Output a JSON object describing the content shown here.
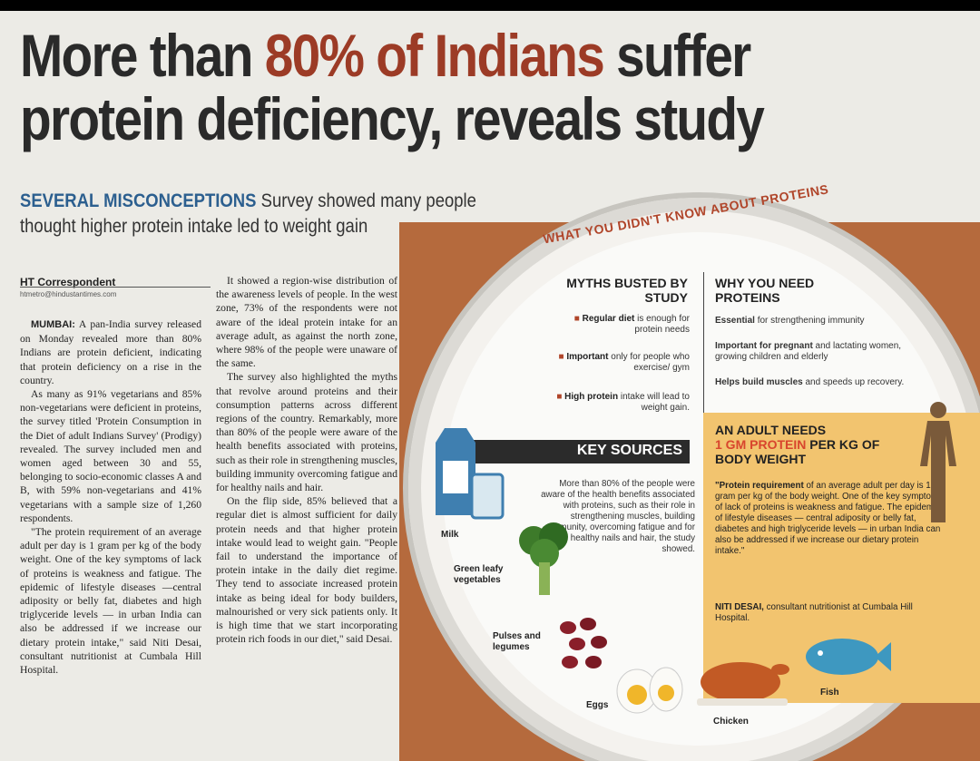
{
  "headline": {
    "line1_pre": "More than ",
    "line1_accent": "80% of Indians",
    "line1_post": " suffer",
    "line2": "protein deficiency, reveals study"
  },
  "subhead": {
    "kicker": "SEVERAL MISCONCEPTIONS",
    "text": " Survey showed many people thought higher protein intake led to weight gain"
  },
  "byline": {
    "author": "HT Correspondent",
    "email": "htmetro@hindustantimes.com"
  },
  "article": {
    "col1": [
      {
        "dateline": "MUMBAI:",
        "text": " A pan-India survey released on Monday revealed more than 80% Indians are protein deficient, indicating that protein deficiency on a rise in the country."
      },
      {
        "text": "As many as 91% vegetarians and 85% non-vegetarians were deficient in proteins, the survey titled 'Protein Consumption in the Diet of adult Indians Survey' (Prodigy) revealed. The survey included men and women aged between 30 and 55, belonging to socio-economic classes A and B, with 59% non-vegetarians and 41% vegetarians with a sample size of 1,260 respondents."
      },
      {
        "text": "\"The protein requirement of an average adult per day is 1 gram per kg of the body weight. One of the key symptoms of lack of proteins is weakness and fatigue. The epidemic of lifestyle diseases —central adiposity or belly fat, diabetes and high triglyceride levels — in urban India can also be addressed if we increase our dietary protein intake,\" said Niti Desai, consultant nutritionist at Cumbala Hill Hospital."
      }
    ],
    "col2": [
      {
        "text": "It showed a region-wise distribution of the awareness levels of people. In the west zone, 73% of the respondents were not aware of the ideal protein intake for an average adult, as against the north zone, where 98% of the people were unaware of the same."
      },
      {
        "text": "The survey also highlighted the myths that revolve around proteins and their consumption patterns across different regions of the country. Remarkably, more than 80% of the people were aware of the health benefits associated with proteins, such as their role in strengthening muscles, building immunity overcoming fatigue and for healthy nails and hair."
      },
      {
        "text": "On the flip side, 85% believed that a regular diet is almost sufficient for daily protein needs and that higher protein intake would lead to weight gain. \"People fail to understand the importance of protein intake in the daily diet regime. They tend to associate increased protein intake as being ideal for body builders, malnourished or very sick patients only. It is high time that we start incorporating protein rich foods in our diet,\" said Desai."
      }
    ]
  },
  "graphic": {
    "arc_title": "WHAT YOU DIDN'T KNOW ABOUT PROTEINS",
    "myths_heading": "MYTHS BUSTED BY STUDY",
    "myths": [
      {
        "bold": "Regular diet",
        "rest": " is enough for protein needs"
      },
      {
        "bold": "Important",
        "rest": " only for people who exercise/ gym"
      },
      {
        "bold": "High protein",
        "rest": " intake will lead to weight gain."
      }
    ],
    "why_heading": "WHY YOU NEED PROTEINS",
    "why": [
      {
        "bold": "Essential",
        "rest": " for strengthening immunity"
      },
      {
        "bold": "Important for pregnant",
        "rest": " and lactating women, growing children and elderly"
      },
      {
        "bold": "Helps build muscles",
        "rest": " and speeds up recovery."
      }
    ],
    "key_sources": "KEY SOURCES",
    "awareness": "More than 80% of the people were aware of the health benefits associated with proteins, such as their role in strengthening muscles, building immunity, overcoming fatigue and for healthy nails and hair, the study showed.",
    "adult_heading_1": "AN ADULT NEEDS",
    "adult_heading_2": "1 GM PROTEIN",
    "adult_heading_3": " PER KG OF BODY WEIGHT",
    "adult_quote_bold": "\"Protein requirement",
    "adult_quote": " of an average adult per day is 1 gram per kg of the body weight. One of the key symptoms of lack of proteins is weakness and fatigue. The epidemic of lifestyle diseases — central adiposity or belly fat, diabetes and high triglyceride levels — in urban India can also be addressed if we increase our dietary protein intake.\"",
    "adult_sig_bold": "NITI DESAI,",
    "adult_sig": " consultant nutritionist at Cumbala Hill Hospital.",
    "foods": {
      "milk": "Milk",
      "greens": "Green leafy vegetables",
      "pulses": "Pulses and legumes",
      "eggs": "Eggs",
      "chicken": "Chicken",
      "fish": "Fish"
    }
  }
}
